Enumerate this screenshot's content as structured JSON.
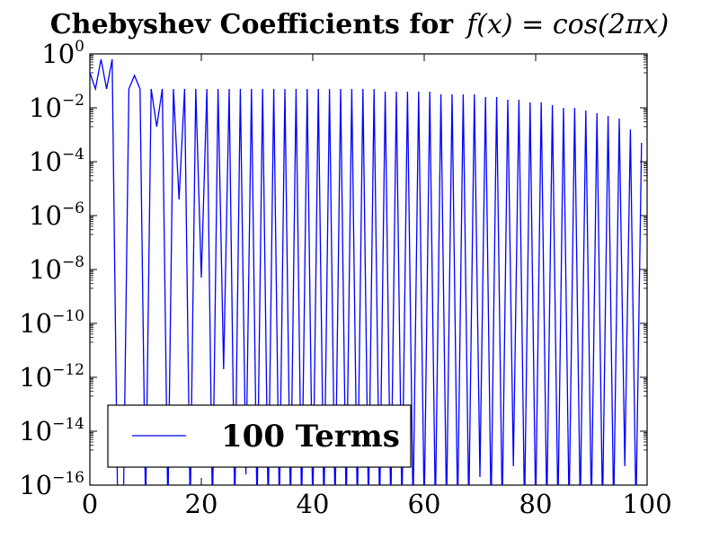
{
  "chart_data": {
    "type": "line",
    "title": "Chebyshev Coefficients for",
    "title_math": "f(x) = cos(2πx)",
    "xlabel": "",
    "ylabel": "",
    "xlim": [
      0,
      100
    ],
    "ylim_log10": [
      -16,
      0
    ],
    "yscale": "log",
    "xticks": [
      0,
      20,
      40,
      60,
      80,
      100
    ],
    "yticks": [
      {
        "base": "10",
        "exp": "0",
        "value": 0
      },
      {
        "base": "10",
        "exp": "−2",
        "value": -2
      },
      {
        "base": "10",
        "exp": "−4",
        "value": -4
      },
      {
        "base": "10",
        "exp": "−6",
        "value": -6
      },
      {
        "base": "10",
        "exp": "−8",
        "value": -8
      },
      {
        "base": "10",
        "exp": "−10",
        "value": -10
      },
      {
        "base": "10",
        "exp": "−12",
        "value": -12
      },
      {
        "base": "10",
        "exp": "−14",
        "value": -14
      },
      {
        "base": "10",
        "exp": "−16",
        "value": -16
      }
    ],
    "legend_position": "lower-left",
    "series": [
      {
        "name": "100 Terms",
        "color": "#0000ff",
        "x": [
          0,
          1,
          2,
          3,
          4,
          5,
          6,
          7,
          8,
          9,
          10,
          11,
          12,
          13,
          14,
          15,
          16,
          17,
          18,
          19,
          20,
          21,
          22,
          23,
          24,
          25,
          26,
          27,
          28,
          29,
          30,
          31,
          32,
          33,
          34,
          35,
          36,
          37,
          38,
          39,
          40,
          41,
          42,
          43,
          44,
          45,
          46,
          47,
          48,
          49,
          50,
          51,
          52,
          53,
          54,
          55,
          56,
          57,
          58,
          59,
          60,
          61,
          62,
          63,
          64,
          65,
          66,
          67,
          68,
          69,
          70,
          71,
          72,
          73,
          74,
          75,
          76,
          77,
          78,
          79,
          80,
          81,
          82,
          83,
          84,
          85,
          86,
          87,
          88,
          89,
          90,
          91,
          92,
          93,
          94,
          95,
          96,
          97,
          98,
          99
        ],
        "log10_values": [
          -0.7,
          -1.3,
          -0.2,
          -1.3,
          -0.2,
          -17,
          -17,
          -1.3,
          -0.8,
          -1.3,
          -17,
          -1.3,
          -2.7,
          -1.3,
          -17,
          -1.3,
          -5.4,
          -1.3,
          -17,
          -1.3,
          -8.3,
          -1.3,
          -17,
          -1.3,
          -11.7,
          -1.3,
          -17,
          -1.3,
          -15.6,
          -1.3,
          -17,
          -1.3,
          -17,
          -1.3,
          -17,
          -1.3,
          -17,
          -1.3,
          -17,
          -1.3,
          -17,
          -1.3,
          -17,
          -1.3,
          -17,
          -1.3,
          -17,
          -1.3,
          -17,
          -1.3,
          -17,
          -1.3,
          -17,
          -1.4,
          -17,
          -1.4,
          -17,
          -1.4,
          -17,
          -1.4,
          -17,
          -1.4,
          -17,
          -1.5,
          -17,
          -1.5,
          -17,
          -1.5,
          -17,
          -1.5,
          -15.7,
          -1.6,
          -17,
          -1.6,
          -17,
          -1.7,
          -15.3,
          -1.7,
          -17,
          -1.8,
          -17,
          -1.8,
          -17,
          -1.9,
          -17,
          -2.0,
          -17,
          -2.0,
          -17,
          -2.1,
          -17,
          -2.2,
          -17,
          -2.3,
          -17,
          -2.4,
          -15.3,
          -2.8,
          -17,
          -3.3
        ]
      }
    ]
  }
}
